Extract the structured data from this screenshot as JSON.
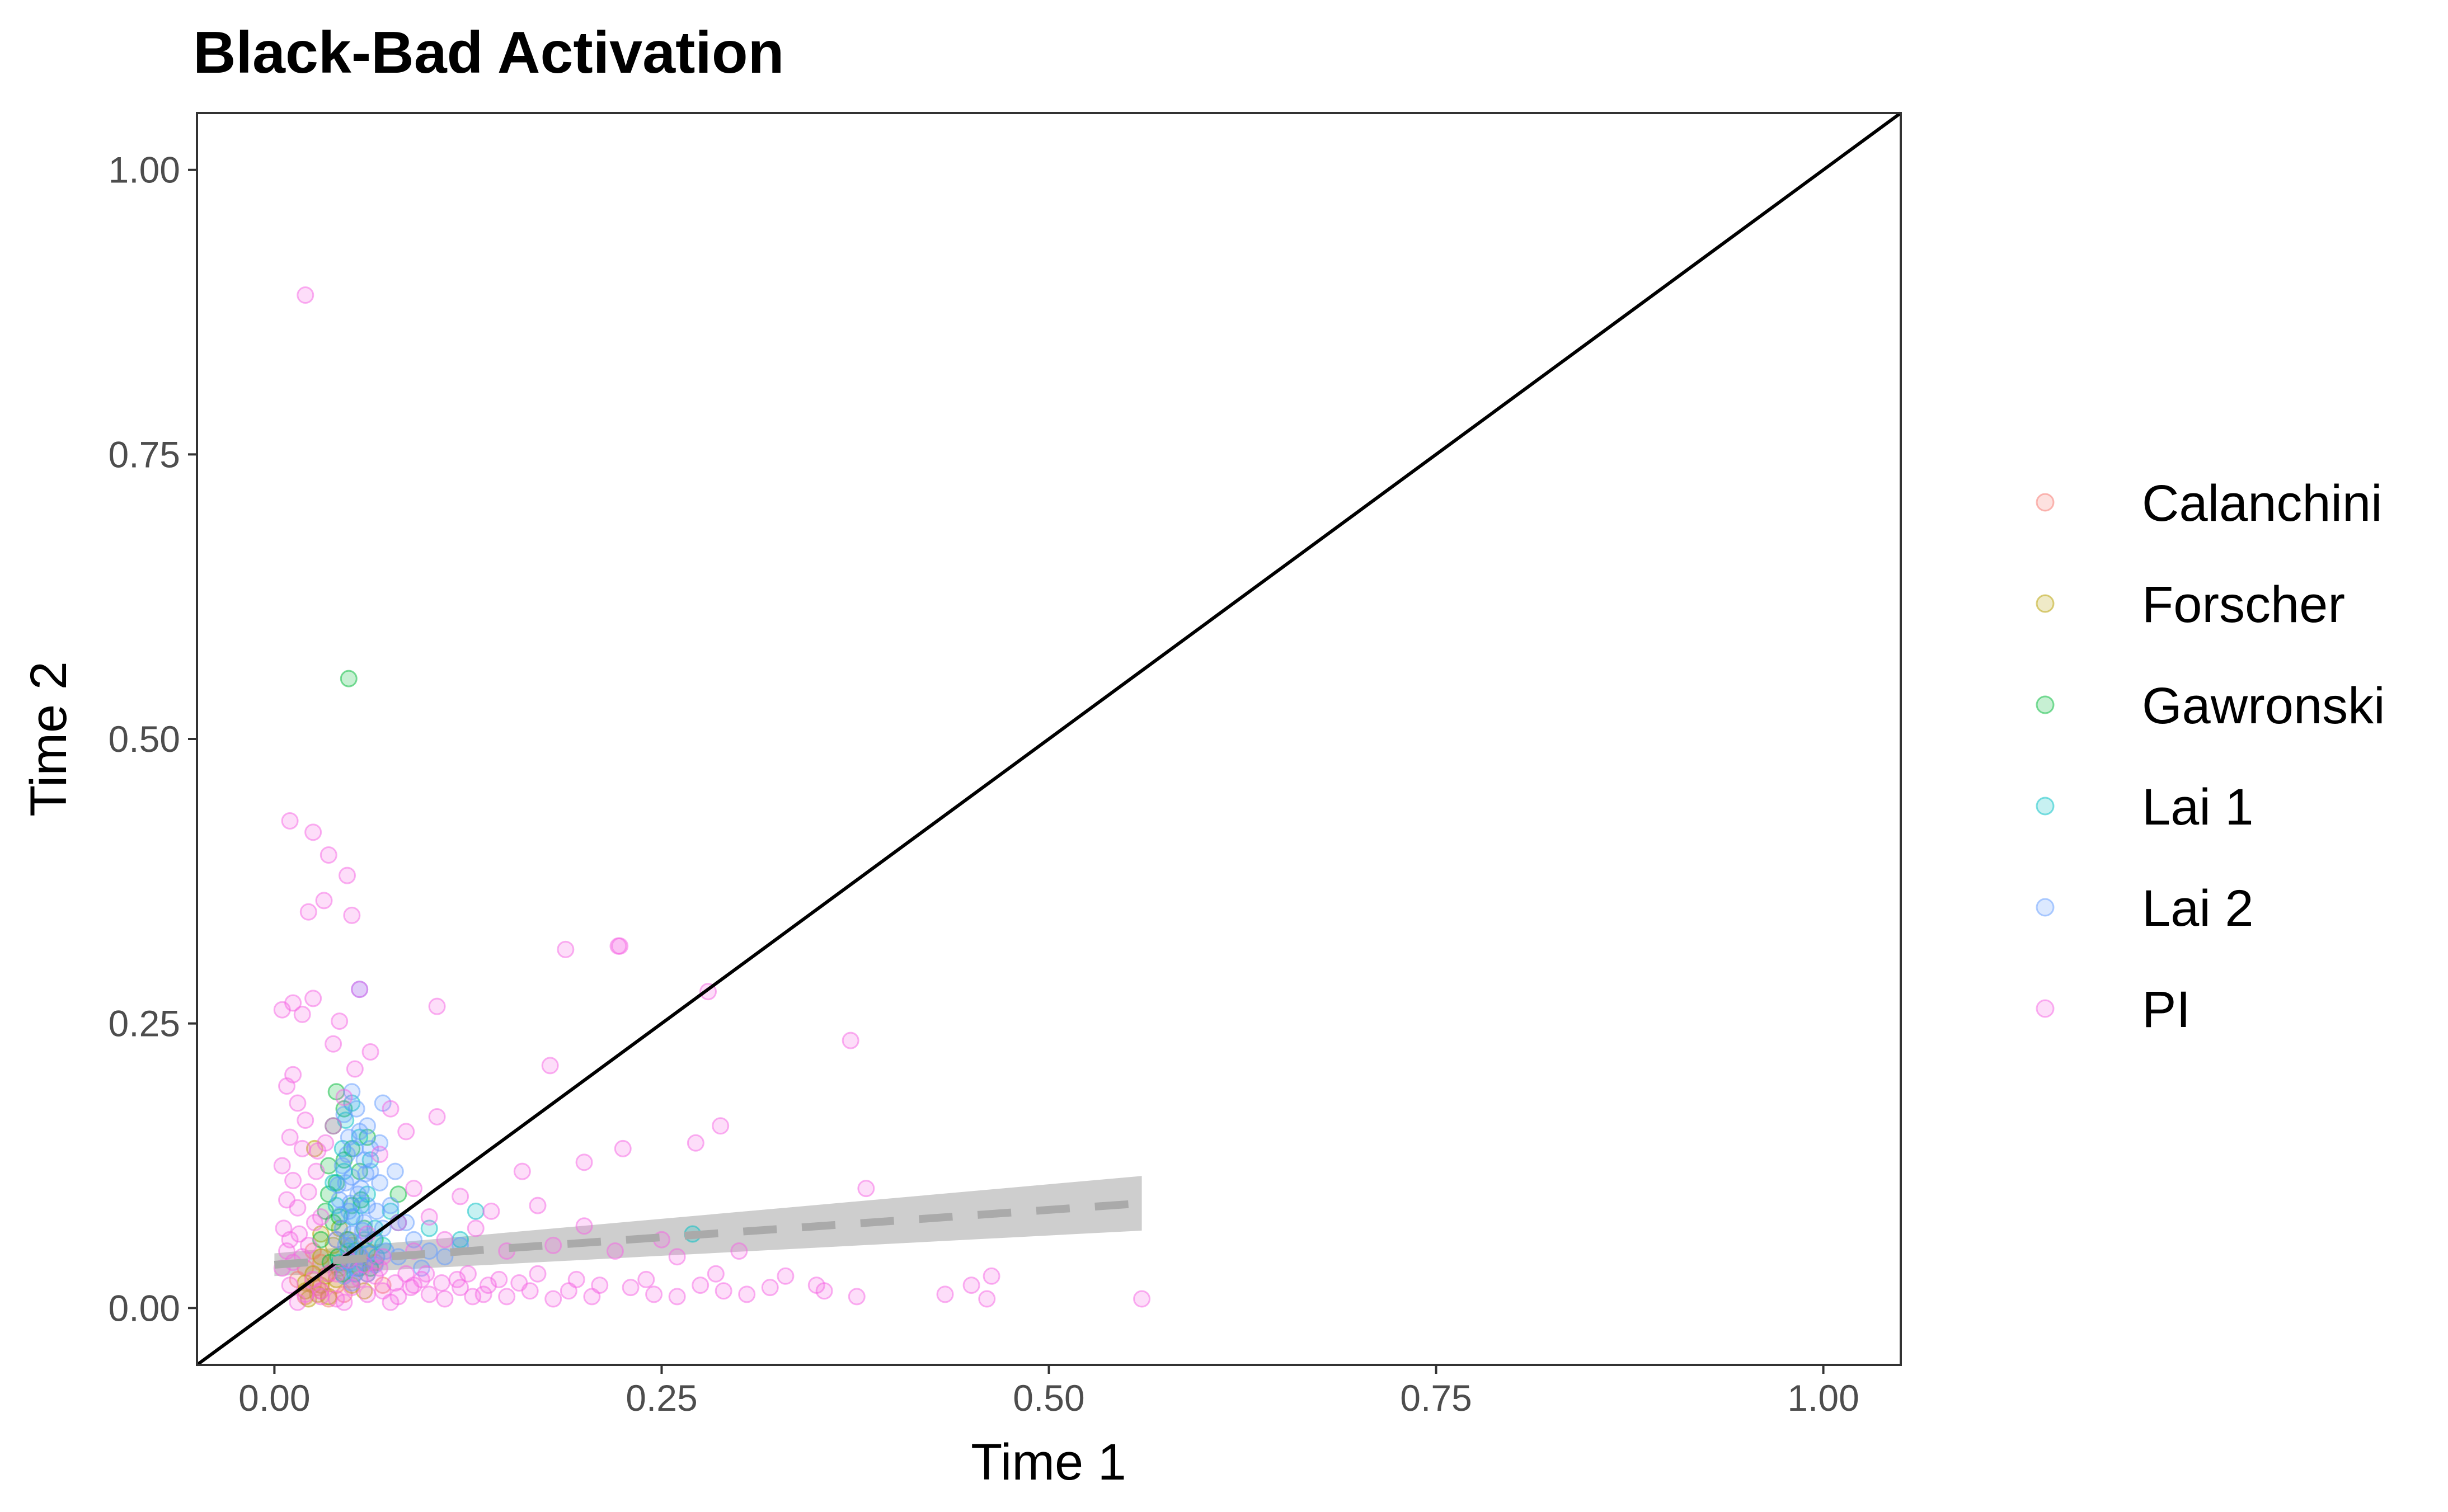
{
  "chart_data": {
    "type": "scatter",
    "title": "Black-Bad Activation",
    "xlabel": "Time 1",
    "ylabel": "Time 2",
    "xlim": [
      -0.05,
      1.05
    ],
    "ylim": [
      -0.05,
      1.05
    ],
    "xticks": [
      0.0,
      0.25,
      0.5,
      0.75,
      1.0
    ],
    "xtick_labels": [
      "0.00",
      "0.25",
      "0.50",
      "0.75",
      "1.00"
    ],
    "yticks": [
      0.0,
      0.25,
      0.5,
      0.75,
      1.0
    ],
    "ytick_labels": [
      "0.00",
      "0.25",
      "0.50",
      "0.75",
      "1.00"
    ],
    "grid": false,
    "legend_position": "right",
    "reference_line": {
      "type": "identity",
      "color": "#000000"
    },
    "trend_line": {
      "x": [
        0.0,
        0.56
      ],
      "y": [
        0.038,
        0.092
      ],
      "ci_lower": [
        0.028,
        0.068
      ],
      "ci_upper": [
        0.048,
        0.116
      ],
      "color": "#aaaaaa",
      "ci_color": "#bdbdbd",
      "dashed": true
    },
    "series": [
      {
        "name": "Calanchini",
        "color": "#F8766D",
        "points": [
          [
            0.02,
            0.01
          ],
          [
            0.025,
            0.02
          ],
          [
            0.03,
            0.015
          ],
          [
            0.035,
            0.03
          ],
          [
            0.02,
            0.035
          ],
          [
            0.04,
            0.02
          ],
          [
            0.05,
            0.025
          ],
          [
            0.03,
            0.04
          ],
          [
            0.045,
            0.012
          ],
          [
            0.06,
            0.03
          ],
          [
            0.025,
            0.05
          ],
          [
            0.055,
            0.045
          ],
          [
            0.07,
            0.02
          ],
          [
            0.04,
            0.06
          ],
          [
            0.015,
            0.025
          ],
          [
            0.035,
            0.008
          ],
          [
            0.05,
            0.055
          ],
          [
            0.028,
            0.018
          ],
          [
            0.065,
            0.04
          ],
          [
            0.042,
            0.035
          ]
        ]
      },
      {
        "name": "Forscher",
        "color": "#B79F00",
        "points": [
          [
            0.02,
            0.015
          ],
          [
            0.03,
            0.02
          ],
          [
            0.025,
            0.03
          ],
          [
            0.035,
            0.01
          ],
          [
            0.04,
            0.025
          ],
          [
            0.045,
            0.04
          ],
          [
            0.03,
            0.045
          ],
          [
            0.05,
            0.02
          ],
          [
            0.055,
            0.035
          ],
          [
            0.022,
            0.008
          ],
          [
            0.038,
            0.055
          ],
          [
            0.06,
            0.05
          ],
          [
            0.028,
            0.012
          ],
          [
            0.048,
            0.06
          ],
          [
            0.033,
            0.028
          ],
          [
            0.02,
            0.022
          ],
          [
            0.026,
            0.14
          ],
          [
            0.042,
            0.07
          ],
          [
            0.03,
            0.065
          ],
          [
            0.058,
            0.015
          ]
        ]
      },
      {
        "name": "Gawronski",
        "color": "#00BA38",
        "points": [
          [
            0.048,
            0.553
          ],
          [
            0.04,
            0.19
          ],
          [
            0.038,
            0.16
          ],
          [
            0.045,
            0.13
          ],
          [
            0.035,
            0.1
          ],
          [
            0.05,
            0.09
          ],
          [
            0.042,
            0.08
          ],
          [
            0.055,
            0.12
          ],
          [
            0.03,
            0.06
          ],
          [
            0.047,
            0.06
          ],
          [
            0.058,
            0.07
          ],
          [
            0.036,
            0.04
          ],
          [
            0.044,
            0.03
          ],
          [
            0.052,
            0.05
          ],
          [
            0.04,
            0.11
          ],
          [
            0.06,
            0.15
          ],
          [
            0.033,
            0.085
          ],
          [
            0.062,
            0.035
          ],
          [
            0.05,
            0.14
          ],
          [
            0.045,
            0.175
          ],
          [
            0.038,
            0.075
          ],
          [
            0.056,
            0.095
          ],
          [
            0.041,
            0.045
          ],
          [
            0.035,
            0.125
          ],
          [
            0.08,
            0.1
          ],
          [
            0.065,
            0.06
          ]
        ]
      },
      {
        "name": "Lai 1",
        "color": "#00BFC4",
        "points": [
          [
            0.27,
            0.065
          ],
          [
            0.13,
            0.085
          ],
          [
            0.1,
            0.07
          ],
          [
            0.05,
            0.18
          ],
          [
            0.055,
            0.15
          ],
          [
            0.045,
            0.12
          ],
          [
            0.06,
            0.1
          ],
          [
            0.04,
            0.09
          ],
          [
            0.05,
            0.08
          ],
          [
            0.065,
            0.07
          ],
          [
            0.058,
            0.06
          ],
          [
            0.048,
            0.05
          ],
          [
            0.042,
            0.04
          ],
          [
            0.052,
            0.03
          ],
          [
            0.07,
            0.055
          ],
          [
            0.062,
            0.13
          ],
          [
            0.038,
            0.11
          ],
          [
            0.066,
            0.045
          ],
          [
            0.056,
            0.09
          ],
          [
            0.075,
            0.085
          ],
          [
            0.12,
            0.06
          ],
          [
            0.08,
            0.075
          ],
          [
            0.046,
            0.165
          ],
          [
            0.054,
            0.035
          ],
          [
            0.044,
            0.14
          ]
        ]
      },
      {
        "name": "Lai 2",
        "color": "#619CFF",
        "points": [
          [
            0.055,
            0.28
          ],
          [
            0.07,
            0.18
          ],
          [
            0.05,
            0.19
          ],
          [
            0.045,
            0.17
          ],
          [
            0.06,
            0.16
          ],
          [
            0.048,
            0.15
          ],
          [
            0.052,
            0.14
          ],
          [
            0.058,
            0.13
          ],
          [
            0.044,
            0.125
          ],
          [
            0.062,
            0.12
          ],
          [
            0.05,
            0.115
          ],
          [
            0.046,
            0.11
          ],
          [
            0.056,
            0.105
          ],
          [
            0.054,
            0.1
          ],
          [
            0.042,
            0.095
          ],
          [
            0.06,
            0.09
          ],
          [
            0.048,
            0.085
          ],
          [
            0.052,
            0.08
          ],
          [
            0.058,
            0.075
          ],
          [
            0.044,
            0.07
          ],
          [
            0.05,
            0.065
          ],
          [
            0.064,
            0.06
          ],
          [
            0.046,
            0.055
          ],
          [
            0.054,
            0.05
          ],
          [
            0.056,
            0.045
          ],
          [
            0.048,
            0.04
          ],
          [
            0.052,
            0.035
          ],
          [
            0.06,
            0.03
          ],
          [
            0.045,
            0.028
          ],
          [
            0.05,
            0.022
          ],
          [
            0.066,
            0.085
          ],
          [
            0.068,
            0.11
          ],
          [
            0.04,
            0.06
          ],
          [
            0.062,
            0.14
          ],
          [
            0.055,
            0.155
          ],
          [
            0.047,
            0.135
          ],
          [
            0.053,
            0.175
          ],
          [
            0.057,
            0.068
          ],
          [
            0.049,
            0.092
          ],
          [
            0.061,
            0.048
          ],
          [
            0.043,
            0.082
          ],
          [
            0.059,
            0.118
          ],
          [
            0.051,
            0.058
          ],
          [
            0.065,
            0.038
          ],
          [
            0.041,
            0.108
          ],
          [
            0.07,
            0.07
          ],
          [
            0.072,
            0.05
          ],
          [
            0.075,
            0.09
          ],
          [
            0.08,
            0.045
          ],
          [
            0.09,
            0.06
          ],
          [
            0.1,
            0.05
          ],
          [
            0.085,
            0.075
          ],
          [
            0.095,
            0.035
          ],
          [
            0.11,
            0.045
          ],
          [
            0.12,
            0.055
          ],
          [
            0.078,
            0.12
          ],
          [
            0.068,
            0.145
          ]
        ]
      },
      {
        "name": "PI",
        "color": "#F564E3",
        "points": [
          [
            0.02,
            0.89
          ],
          [
            0.01,
            0.428
          ],
          [
            0.025,
            0.418
          ],
          [
            0.035,
            0.398
          ],
          [
            0.047,
            0.38
          ],
          [
            0.032,
            0.358
          ],
          [
            0.05,
            0.345
          ],
          [
            0.022,
            0.348
          ],
          [
            0.188,
            0.315
          ],
          [
            0.222,
            0.318
          ],
          [
            0.223,
            0.318
          ],
          [
            0.055,
            0.28
          ],
          [
            0.28,
            0.278
          ],
          [
            0.012,
            0.268
          ],
          [
            0.025,
            0.272
          ],
          [
            0.105,
            0.265
          ],
          [
            0.005,
            0.262
          ],
          [
            0.018,
            0.258
          ],
          [
            0.042,
            0.252
          ],
          [
            0.372,
            0.235
          ],
          [
            0.038,
            0.232
          ],
          [
            0.178,
            0.213
          ],
          [
            0.012,
            0.205
          ],
          [
            0.008,
            0.195
          ],
          [
            0.015,
            0.18
          ],
          [
            0.02,
            0.165
          ],
          [
            0.01,
            0.15
          ],
          [
            0.018,
            0.14
          ],
          [
            0.028,
            0.138
          ],
          [
            0.005,
            0.125
          ],
          [
            0.012,
            0.112
          ],
          [
            0.022,
            0.102
          ],
          [
            0.008,
            0.095
          ],
          [
            0.015,
            0.088
          ],
          [
            0.03,
            0.08
          ],
          [
            0.105,
            0.168
          ],
          [
            0.288,
            0.16
          ],
          [
            0.272,
            0.145
          ],
          [
            0.225,
            0.14
          ],
          [
            0.2,
            0.128
          ],
          [
            0.16,
            0.12
          ],
          [
            0.382,
            0.105
          ],
          [
            0.12,
            0.098
          ],
          [
            0.09,
            0.105
          ],
          [
            0.14,
            0.085
          ],
          [
            0.17,
            0.09
          ],
          [
            0.2,
            0.072
          ],
          [
            0.25,
            0.06
          ],
          [
            0.13,
            0.07
          ],
          [
            0.1,
            0.08
          ],
          [
            0.08,
            0.075
          ],
          [
            0.06,
            0.065
          ],
          [
            0.15,
            0.05
          ],
          [
            0.18,
            0.055
          ],
          [
            0.22,
            0.05
          ],
          [
            0.26,
            0.045
          ],
          [
            0.11,
            0.06
          ],
          [
            0.09,
            0.05
          ],
          [
            0.07,
            0.045
          ],
          [
            0.3,
            0.05
          ],
          [
            0.33,
            0.028
          ],
          [
            0.355,
            0.015
          ],
          [
            0.376,
            0.01
          ],
          [
            0.433,
            0.012
          ],
          [
            0.45,
            0.02
          ],
          [
            0.46,
            0.008
          ],
          [
            0.463,
            0.028
          ],
          [
            0.56,
            0.008
          ],
          [
            0.29,
            0.015
          ],
          [
            0.305,
            0.012
          ],
          [
            0.275,
            0.02
          ],
          [
            0.26,
            0.01
          ],
          [
            0.245,
            0.012
          ],
          [
            0.23,
            0.018
          ],
          [
            0.21,
            0.02
          ],
          [
            0.195,
            0.025
          ],
          [
            0.18,
            0.008
          ],
          [
            0.165,
            0.015
          ],
          [
            0.15,
            0.01
          ],
          [
            0.135,
            0.012
          ],
          [
            0.12,
            0.018
          ],
          [
            0.11,
            0.008
          ],
          [
            0.1,
            0.012
          ],
          [
            0.09,
            0.02
          ],
          [
            0.08,
            0.01
          ],
          [
            0.07,
            0.015
          ],
          [
            0.06,
            0.012
          ],
          [
            0.05,
            0.018
          ],
          [
            0.04,
            0.008
          ],
          [
            0.03,
            0.015
          ],
          [
            0.02,
            0.012
          ],
          [
            0.01,
            0.02
          ],
          [
            0.015,
            0.005
          ],
          [
            0.025,
            0.025
          ],
          [
            0.035,
            0.03
          ],
          [
            0.045,
            0.005
          ],
          [
            0.055,
            0.025
          ],
          [
            0.065,
            0.028
          ],
          [
            0.075,
            0.005
          ],
          [
            0.085,
            0.03
          ],
          [
            0.095,
            0.025
          ],
          [
            0.125,
            0.03
          ],
          [
            0.145,
            0.025
          ],
          [
            0.17,
            0.03
          ],
          [
            0.005,
            0.035
          ],
          [
            0.012,
            0.04
          ],
          [
            0.018,
            0.045
          ],
          [
            0.008,
            0.05
          ],
          [
            0.022,
            0.055
          ],
          [
            0.01,
            0.06
          ],
          [
            0.016,
            0.065
          ],
          [
            0.006,
            0.07
          ],
          [
            0.026,
            0.075
          ],
          [
            0.03,
            0.01
          ],
          [
            0.04,
            0.03
          ],
          [
            0.048,
            0.042
          ],
          [
            0.058,
            0.038
          ],
          [
            0.068,
            0.035
          ],
          [
            0.078,
            0.022
          ],
          [
            0.088,
            0.018
          ],
          [
            0.098,
            0.03
          ],
          [
            0.108,
            0.022
          ],
          [
            0.118,
            0.025
          ],
          [
            0.128,
            0.01
          ],
          [
            0.138,
            0.02
          ],
          [
            0.158,
            0.022
          ],
          [
            0.19,
            0.015
          ],
          [
            0.205,
            0.01
          ],
          [
            0.24,
            0.025
          ],
          [
            0.285,
            0.03
          ],
          [
            0.32,
            0.018
          ],
          [
            0.35,
            0.02
          ],
          [
            0.038,
            0.16
          ],
          [
            0.045,
            0.185
          ],
          [
            0.033,
            0.145
          ],
          [
            0.027,
            0.12
          ],
          [
            0.052,
            0.21
          ],
          [
            0.062,
            0.225
          ],
          [
            0.075,
            0.175
          ],
          [
            0.085,
            0.155
          ],
          [
            0.068,
            0.135
          ]
        ]
      }
    ]
  }
}
